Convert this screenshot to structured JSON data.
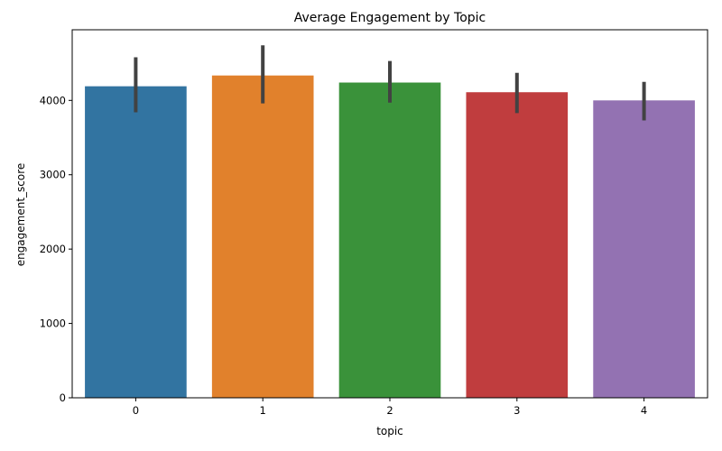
{
  "chart_data": {
    "type": "bar",
    "title": "Average Engagement by Topic",
    "xlabel": "topic",
    "ylabel": "engagement_score",
    "categories": [
      "0",
      "1",
      "2",
      "3",
      "4"
    ],
    "values": [
      4190,
      4335,
      4240,
      4110,
      4000
    ],
    "error_bars": [
      [
        3840,
        4580
      ],
      [
        3960,
        4740
      ],
      [
        3970,
        4530
      ],
      [
        3830,
        4370
      ],
      [
        3730,
        4250
      ]
    ],
    "colors": [
      "#3274a1",
      "#e1812c",
      "#3a923a",
      "#c03d3e",
      "#9372b2"
    ],
    "error_bar_color": "#424242",
    "ylim": [
      0,
      4950
    ],
    "yticks": [
      0,
      1000,
      2000,
      3000,
      4000
    ],
    "grid": false,
    "legend": "none"
  }
}
